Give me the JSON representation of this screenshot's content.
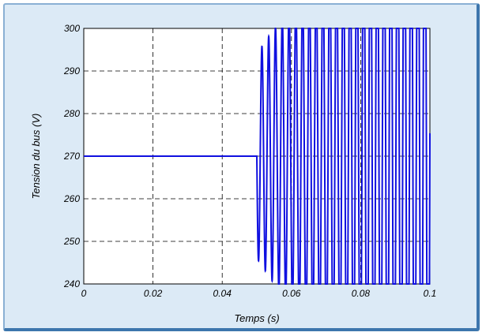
{
  "chart_data": {
    "type": "line",
    "xlabel": "Temps (s)",
    "ylabel": "Tension du bus (V)",
    "xlim": [
      0,
      0.1
    ],
    "ylim": [
      240,
      300
    ],
    "xticks": [
      0,
      0.02,
      0.04,
      0.06,
      0.08,
      0.1
    ],
    "xtick_labels": [
      "0",
      "0.02",
      "0.04",
      "0.06",
      "0.08",
      "0.1"
    ],
    "yticks": [
      240,
      250,
      260,
      270,
      280,
      290,
      300
    ],
    "ytick_labels": [
      "240",
      "250",
      "260",
      "270",
      "280",
      "290",
      "300"
    ],
    "grid": true,
    "grid_style": "dashed",
    "series": [
      {
        "color": "#1010e0",
        "constant_segment": {
          "x_start": 0,
          "x_end": 0.05,
          "y": 270
        },
        "oscillation": {
          "x_start": 0.05,
          "x_end": 0.1,
          "center": 270,
          "period": 0.00196,
          "amplitude_start": 24,
          "amplitude_growth_per_s": 1200,
          "clip": [
            240,
            300
          ]
        }
      }
    ]
  }
}
